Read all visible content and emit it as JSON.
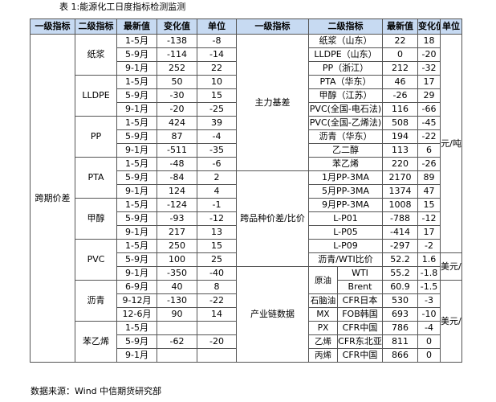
{
  "caption": "表 1:能源化工日度指标检测监测",
  "source": "数据来源：Wind  中信期货研究部",
  "left_headers": [
    "一级指标",
    "二级指标",
    "最新值",
    "变化值",
    "单位"
  ],
  "left": {
    "level1": "跨期价差",
    "unit": "元/吨",
    "groups": [
      {
        "name": "纸浆",
        "rows": [
          {
            "period": "1-5月",
            "latest": "-138",
            "change": "-8"
          },
          {
            "period": "5-9月",
            "latest": "-114",
            "change": "-14"
          },
          {
            "period": "9-1月",
            "latest": "252",
            "change": "22"
          }
        ]
      },
      {
        "name": "LLDPE",
        "rows": [
          {
            "period": "1-5月",
            "latest": "50",
            "change": "10"
          },
          {
            "period": "5-9月",
            "latest": "-30",
            "change": "15"
          },
          {
            "period": "9-1月",
            "latest": "-20",
            "change": "-25"
          }
        ]
      },
      {
        "name": "PP",
        "rows": [
          {
            "period": "1-5月",
            "latest": "424",
            "change": "39"
          },
          {
            "period": "5-9月",
            "latest": "87",
            "change": "-4"
          },
          {
            "period": "9-1月",
            "latest": "-511",
            "change": "-35"
          }
        ]
      },
      {
        "name": "PTA",
        "rows": [
          {
            "period": "1-5月",
            "latest": "-48",
            "change": "-6"
          },
          {
            "period": "5-9月",
            "latest": "-84",
            "change": "2"
          },
          {
            "period": "9-1月",
            "latest": "124",
            "change": "4"
          }
        ]
      },
      {
        "name": "甲醇",
        "rows": [
          {
            "period": "1-5月",
            "latest": "-124",
            "change": "-1"
          },
          {
            "period": "5-9月",
            "latest": "-93",
            "change": "-12"
          },
          {
            "period": "9-1月",
            "latest": "217",
            "change": "13"
          }
        ]
      },
      {
        "name": "PVC",
        "rows": [
          {
            "period": "1-5月",
            "latest": "250",
            "change": "15"
          },
          {
            "period": "5-9月",
            "latest": "100",
            "change": "25"
          },
          {
            "period": "9-1月",
            "latest": "-350",
            "change": "-40"
          }
        ]
      },
      {
        "name": "沥青",
        "rows": [
          {
            "period": "6-9月",
            "latest": "40",
            "change": "8"
          },
          {
            "period": "9-12月",
            "latest": "-130",
            "change": "-22"
          },
          {
            "period": "12-6月",
            "latest": "90",
            "change": "14"
          }
        ]
      },
      {
        "name": "苯乙烯",
        "rows": [
          {
            "period": "1-5月",
            "latest": "",
            "change": ""
          },
          {
            "period": "5-9月",
            "latest": "-62",
            "change": "-20"
          },
          {
            "period": "9-1月",
            "latest": "",
            "change": ""
          }
        ]
      }
    ]
  },
  "right_headers": [
    "一级指标",
    "二级指标",
    "最新值",
    "变化值",
    "单位"
  ],
  "right": {
    "basis": {
      "level1": "主力基差",
      "rows": [
        {
          "name": "纸浆（山东）",
          "latest": "22",
          "change": "18"
        },
        {
          "name": "LLDPE（山东）",
          "latest": "0",
          "change": "-20"
        },
        {
          "name": "PP（浙江）",
          "latest": "212",
          "change": "-32"
        },
        {
          "name": "PTA（华东）",
          "latest": "46",
          "change": "17"
        },
        {
          "name": "甲醇（江苏）",
          "latest": "-26",
          "change": "29"
        },
        {
          "name": "PVC(全国-电石法)",
          "latest": "116",
          "change": "-66"
        },
        {
          "name": "PVC(全国-乙烯法)",
          "latest": "508",
          "change": "-45"
        },
        {
          "name": "沥青（华东）",
          "latest": "194",
          "change": "-22"
        },
        {
          "name": "乙二醇",
          "latest": "113",
          "change": "6"
        },
        {
          "name": "苯乙烯",
          "latest": "220",
          "change": "-26"
        }
      ]
    },
    "unit_yuan": "元/吨",
    "cross": {
      "level1": "跨品种价差/比价",
      "rows": [
        {
          "name": "1月PP-3MA",
          "latest": "2170",
          "change": "89"
        },
        {
          "name": "5月PP-3MA",
          "latest": "1374",
          "change": "47"
        },
        {
          "name": "9月PP-3MA",
          "latest": "1008",
          "change": "15"
        },
        {
          "name": "L-P01",
          "latest": "-788",
          "change": "-12"
        },
        {
          "name": "L-P05",
          "latest": "-414",
          "change": "17"
        },
        {
          "name": "L-P09",
          "latest": "-297",
          "change": "-2"
        },
        {
          "name": "沥青/WTI比价",
          "latest": "52.2",
          "change": "1.6"
        }
      ]
    },
    "chain": {
      "level1": "产业链数据",
      "groups": [
        {
          "name": "原油",
          "rows": [
            {
              "sub": "WTI",
              "latest": "55.2",
              "change": "-1.8"
            },
            {
              "sub": "Brent",
              "latest": "60.9",
              "change": "-1.5"
            }
          ]
        },
        {
          "name": "石脑油",
          "rows": [
            {
              "sub": "CFR日本",
              "latest": "530",
              "change": "-3"
            }
          ]
        },
        {
          "name": "MX",
          "rows": [
            {
              "sub": "FOB韩国",
              "latest": "693",
              "change": "-10"
            }
          ]
        },
        {
          "name": "PX",
          "rows": [
            {
              "sub": "CFR中国",
              "latest": "786",
              "change": "-4"
            }
          ]
        },
        {
          "name": "乙烯",
          "rows": [
            {
              "sub": "CFR东北亚",
              "latest": "811",
              "change": "0"
            }
          ]
        },
        {
          "name": "丙烯",
          "rows": [
            {
              "sub": "CFR中国",
              "latest": "866",
              "change": "0"
            }
          ]
        }
      ]
    },
    "unit_usd_bbl": "美元/桶",
    "unit_usd_t": "美元/吨"
  }
}
